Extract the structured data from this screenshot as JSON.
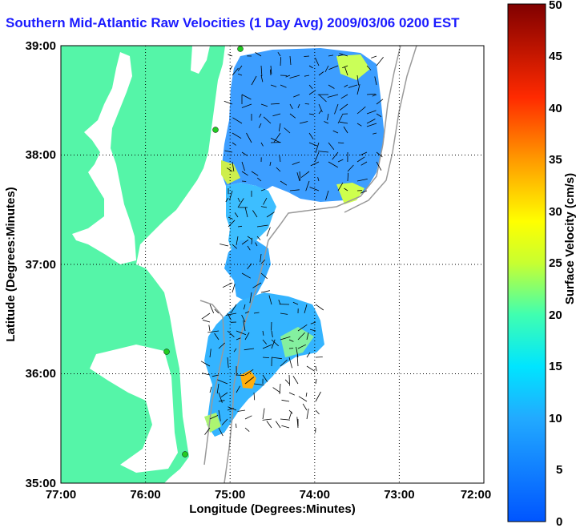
{
  "title": "Southern Mid-Atlantic Raw Velocities (1 Day Avg) 2009/03/06 0200 EST",
  "map": {
    "xlabel": "Longitude (Degrees:Minutes)",
    "ylabel": "Latitude (Degrees:Minutes)",
    "lon_ticks": [
      "77:00",
      "76:00",
      "75:00",
      "74:00",
      "73:00",
      "72:00"
    ],
    "lat_ticks": [
      "39:00",
      "38:00",
      "37:00",
      "36:00",
      "35:00"
    ],
    "lon_range": [
      -77,
      -72
    ],
    "lat_range": [
      35,
      39
    ],
    "land_color": "#55f5a8",
    "grid": "dotted"
  },
  "colorbar": {
    "label": "Surface Velocity (cm/s)",
    "ticks": [
      "50",
      "45",
      "40",
      "35",
      "30",
      "25",
      "20",
      "15",
      "10",
      "5",
      "0"
    ],
    "range": [
      0,
      50
    ],
    "colormap": "jet"
  }
}
